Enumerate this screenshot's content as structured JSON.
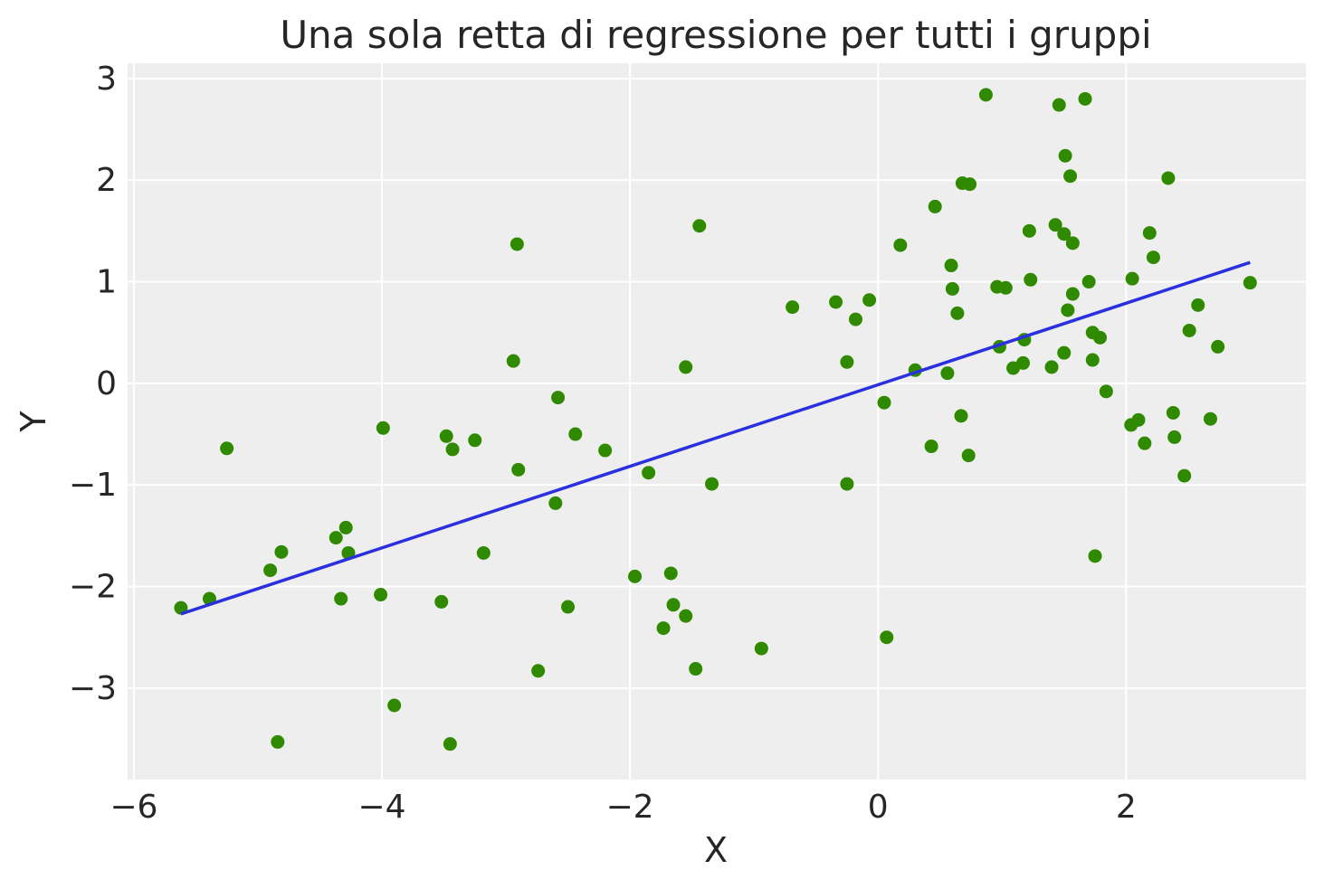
{
  "chart_data": {
    "type": "scatter",
    "title": "Una sola retta di regressione per tutti i gruppi",
    "xlabel": "X",
    "ylabel": "Y",
    "xlim": [
      -6.05,
      3.45
    ],
    "ylim": [
      -3.9,
      3.15
    ],
    "xticks": [
      -6,
      -4,
      -2,
      0,
      2
    ],
    "yticks": [
      -3,
      -2,
      -1,
      0,
      1,
      2,
      3
    ],
    "grid": true,
    "legend": "none",
    "colors": {
      "background": "#eeeeee",
      "grid": "#ffffff",
      "points": "#2f8a00",
      "line": "#2a2fe0"
    },
    "series": [
      {
        "kind": "points",
        "x": [
          -5.62,
          -5.39,
          -5.25,
          -4.9,
          -4.81,
          -4.84,
          -4.37,
          -4.33,
          -4.29,
          -4.27,
          -4.01,
          -3.99,
          -3.9,
          -3.52,
          -3.48,
          -3.43,
          -3.45,
          -3.25,
          -3.18,
          -2.94,
          -2.9,
          -2.91,
          -2.74,
          -2.6,
          -2.58,
          -2.5,
          -2.44,
          -2.2,
          -1.96,
          -1.85,
          -1.73,
          -1.67,
          -1.65,
          -1.55,
          -1.47,
          -1.44,
          -1.55,
          -1.34,
          -0.94,
          -0.69,
          -0.34,
          -0.25,
          -0.18,
          -0.07,
          -0.25,
          0.05,
          0.07,
          0.18,
          0.3,
          0.43,
          0.46,
          0.56,
          0.59,
          0.6,
          0.64,
          0.67,
          0.68,
          0.73,
          0.74,
          0.87,
          0.96,
          0.98,
          1.03,
          1.09,
          1.17,
          1.18,
          1.22,
          1.23,
          1.4,
          1.43,
          1.46,
          1.5,
          1.5,
          1.51,
          1.53,
          1.55,
          1.57,
          1.57,
          1.67,
          1.7,
          1.73,
          1.73,
          1.75,
          1.79,
          1.84,
          2.04,
          2.05,
          2.1,
          2.15,
          2.19,
          2.22,
          2.34,
          2.38,
          2.39,
          2.47,
          2.51,
          2.58,
          2.68,
          2.74,
          3.0
        ],
        "y": [
          -2.21,
          -2.12,
          -0.64,
          -1.84,
          -1.66,
          -3.53,
          -1.52,
          -2.12,
          -1.42,
          -1.67,
          -2.08,
          -0.44,
          -3.17,
          -2.15,
          -0.52,
          -0.65,
          -3.55,
          -0.56,
          -1.67,
          0.22,
          -0.85,
          1.37,
          -2.83,
          -1.18,
          -0.14,
          -2.2,
          -0.5,
          -0.66,
          -1.9,
          -0.88,
          -2.41,
          -1.87,
          -2.18,
          -2.29,
          -2.81,
          1.55,
          0.16,
          -0.99,
          -2.61,
          0.75,
          0.8,
          0.21,
          0.63,
          0.82,
          -0.99,
          -0.19,
          -2.5,
          1.36,
          0.13,
          -0.62,
          1.74,
          0.1,
          1.16,
          0.93,
          0.69,
          -0.32,
          1.97,
          -0.71,
          1.96,
          2.84,
          0.95,
          0.36,
          0.94,
          0.15,
          0.2,
          0.43,
          1.5,
          1.02,
          0.16,
          1.56,
          2.74,
          0.3,
          1.47,
          2.24,
          0.72,
          2.04,
          0.88,
          1.38,
          2.8,
          1.0,
          0.5,
          0.23,
          -1.7,
          0.45,
          -0.08,
          -0.41,
          1.03,
          -0.36,
          -0.59,
          1.48,
          1.24,
          2.02,
          -0.29,
          -0.53,
          -0.91,
          0.52,
          0.77,
          -0.35,
          0.36,
          0.99
        ]
      },
      {
        "kind": "line",
        "x": [
          -5.62,
          3.0
        ],
        "y": [
          -2.27,
          1.19
        ]
      }
    ]
  }
}
